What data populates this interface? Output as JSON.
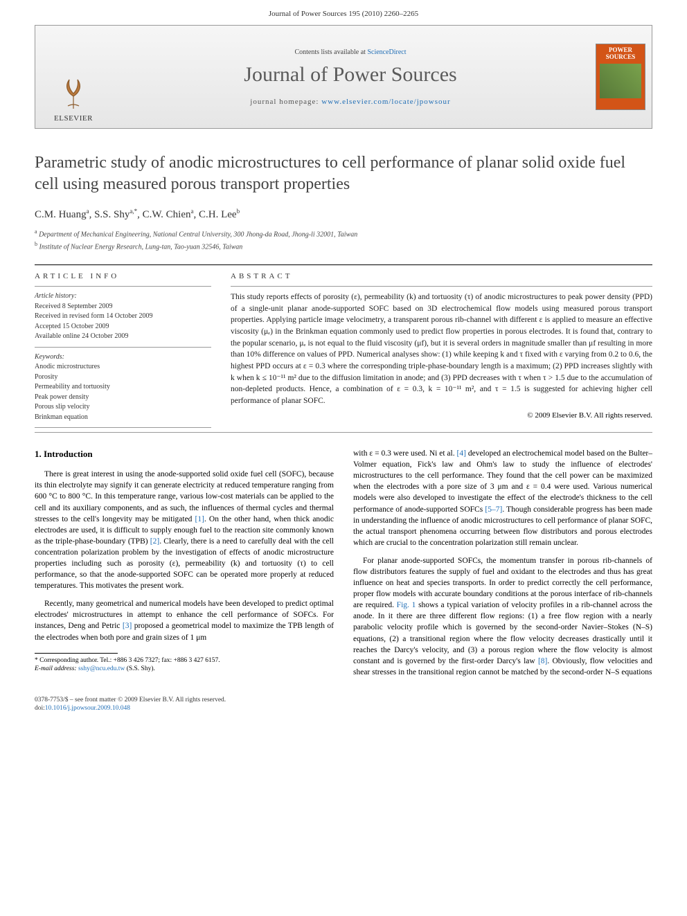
{
  "running_head": "Journal of Power Sources 195 (2010) 2260–2265",
  "banner": {
    "publisher": "ELSEVIER",
    "contents_prefix": "Contents lists available at ",
    "contents_link": "ScienceDirect",
    "journal_name": "Journal of Power Sources",
    "homepage_prefix": "journal homepage: ",
    "homepage_url": "www.elsevier.com/locate/jpowsour",
    "cover_label": "POWER SOURCES"
  },
  "title": "Parametric study of anodic microstructures to cell performance of planar solid oxide fuel cell using measured porous transport properties",
  "authors_html": "C.M. Huang<sup>a</sup>, S.S. Shy<sup>a,*</sup>, C.W. Chien<sup>a</sup>, C.H. Lee<sup>b</sup>",
  "affiliations": {
    "a": "Department of Mechanical Engineering, National Central University, 300 Jhong-da Road, Jhong-li 32001, Taiwan",
    "b": "Institute of Nuclear Energy Research, Lung-tan, Tao-yuan 32546, Taiwan"
  },
  "article_info": {
    "label": "article info",
    "history_heading": "Article history:",
    "history": [
      "Received 8 September 2009",
      "Received in revised form 14 October 2009",
      "Accepted 15 October 2009",
      "Available online 24 October 2009"
    ],
    "keywords_heading": "Keywords:",
    "keywords": [
      "Anodic microstructures",
      "Porosity",
      "Permeability and tortuosity",
      "Peak power density",
      "Porous slip velocity",
      "Brinkman equation"
    ]
  },
  "abstract": {
    "label": "abstract",
    "text": "This study reports effects of porosity (ε), permeability (k) and tortuosity (τ) of anodic microstructures to peak power density (PPD) of a single-unit planar anode-supported SOFC based on 3D electrochemical flow models using measured porous transport properties. Applying particle image velocimetry, a transparent porous rib-channel with different ε is applied to measure an effective viscosity (μₑ) in the Brinkman equation commonly used to predict flow properties in porous electrodes. It is found that, contrary to the popular scenario, μₑ is not equal to the fluid viscosity (μf), but it is several orders in magnitude smaller than μf resulting in more than 10% difference on values of PPD. Numerical analyses show: (1) while keeping k and τ fixed with ε varying from 0.2 to 0.6, the highest PPD occurs at ε = 0.3 where the corresponding triple-phase-boundary length is a maximum; (2) PPD increases slightly with k when k ≤ 10⁻¹¹ m² due to the diffusion limitation in anode; and (3) PPD decreases with τ when τ > 1.5 due to the accumulation of non-depleted products. Hence, a combination of ε = 0.3, k = 10⁻¹¹ m², and τ = 1.5 is suggested for achieving higher cell performance of planar SOFC.",
    "copyright": "© 2009 Elsevier B.V. All rights reserved."
  },
  "body": {
    "section_heading": "1. Introduction",
    "col1_p1": "There is great interest in using the anode-supported solid oxide fuel cell (SOFC), because its thin electrolyte may signify it can generate electricity at reduced temperature ranging from 600 °C to 800 °C. In this temperature range, various low-cost materials can be applied to the cell and its auxiliary components, and as such, the influences of thermal cycles and thermal stresses to the cell's longevity may be mitigated [1]. On the other hand, when thick anodic electrodes are used, it is difficult to supply enough fuel to the reaction site commonly known as the triple-phase-boundary (TPB) [2]. Clearly, there is a need to carefully deal with the cell concentration polarization problem by the investigation of effects of anodic microstructure properties including such as porosity (ε), permeability (k) and tortuosity (τ) to cell performance, so that the anode-supported SOFC can be operated more properly at reduced temperatures. This motivates the present work.",
    "col1_p2": "Recently, many geometrical and numerical models have been developed to predict optimal electrodes' microstructures in attempt to enhance the cell performance of SOFCs. For instances, Deng and Petric [3] proposed a geometrical model to maximize the TPB length of the electrodes when both pore and grain sizes of 1 μm",
    "col2_p1": "with ε = 0.3 were used. Ni et al. [4] developed an electrochemical model based on the Bulter–Volmer equation, Fick's law and Ohm's law to study the influence of electrodes' microstructures to the cell performance. They found that the cell power can be maximized when the electrodes with a pore size of 3 μm and ε = 0.4 were used. Various numerical models were also developed to investigate the effect of the electrode's thickness to the cell performance of anode-supported SOFCs [5–7]. Though considerable progress has been made in understanding the influence of anodic microstructures to cell performance of planar SOFC, the actual transport phenomena occurring between flow distributors and porous electrodes which are crucial to the concentration polarization still remain unclear.",
    "col2_p2": "For planar anode-supported SOFCs, the momentum transfer in porous rib-channels of flow distributors features the supply of fuel and oxidant to the electrodes and thus has great influence on heat and species transports. In order to predict correctly the cell performance, proper flow models with accurate boundary conditions at the porous interface of rib-channels are required. Fig. 1 shows a typical variation of velocity profiles in a rib-channel across the anode. In it there are three different flow regions: (1) a free flow region with a nearly parabolic velocity profile which is governed by the second-order Navier–Stokes (N–S) equations, (2) a transitional region where the flow velocity decreases drastically until it reaches the Darcy's velocity, and (3) a porous region where the flow velocity is almost constant and is governed by the first-order Darcy's law [8]. Obviously, flow velocities and shear stresses in the transitional region cannot be matched by the second-order N–S equations"
  },
  "footnotes": {
    "corr": "* Corresponding author. Tel.: +886 3 426 7327; fax: +886 3 427 6157.",
    "email_label": "E-mail address:",
    "email": "sshy@ncu.edu.tw",
    "email_suffix": "(S.S. Shy)."
  },
  "footer": {
    "line1": "0378-7753/$ – see front matter © 2009 Elsevier B.V. All rights reserved.",
    "doi_label": "doi:",
    "doi": "10.1016/j.jpowsour.2009.10.048"
  },
  "colors": {
    "link": "#1f6db5",
    "accent_orange": "#d35417",
    "banner_bg_top": "#f6f6f6",
    "banner_bg_bottom": "#e6e6e6",
    "text": "#000000",
    "title_gray": "#434343"
  }
}
